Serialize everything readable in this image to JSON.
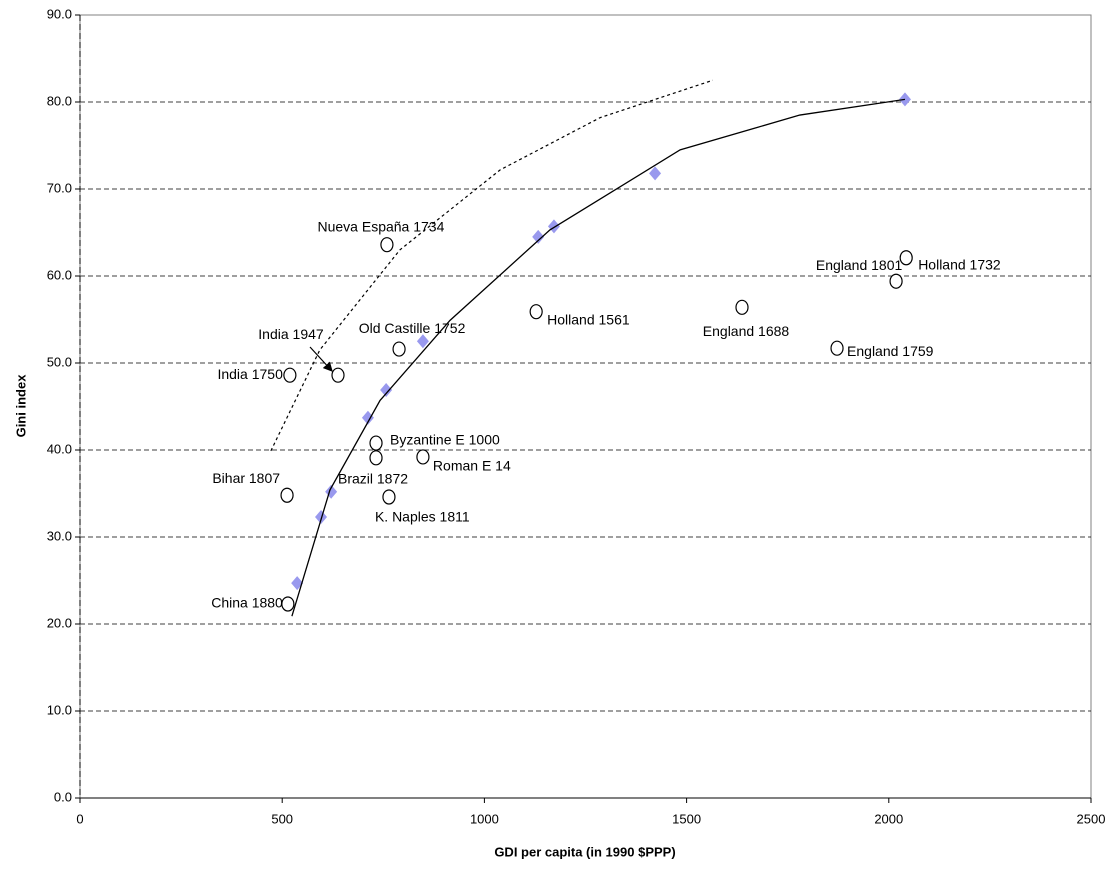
{
  "chart_data": {
    "type": "scatter",
    "x_label": "GDI per capita (in 1990 $PPP)",
    "y_label": "Gini index",
    "xlim": [
      0,
      2500
    ],
    "ylim": [
      0,
      90
    ],
    "xticks": [
      0,
      500,
      1000,
      1500,
      2000,
      2500
    ],
    "yticks": [
      {
        "value": 0,
        "label": "0.0"
      },
      {
        "value": 10,
        "label": "10.0"
      },
      {
        "value": 20,
        "label": "20.0"
      },
      {
        "value": 30,
        "label": "30.0"
      },
      {
        "value": 40,
        "label": "40.0"
      },
      {
        "value": 50,
        "label": "50.0"
      },
      {
        "value": 60,
        "label": "60.0"
      },
      {
        "value": 70,
        "label": "70.0"
      },
      {
        "value": 80,
        "label": "80.0"
      },
      {
        "value": 90,
        "label": "90.0"
      }
    ],
    "grid": true,
    "series": [
      {
        "marker": "circle",
        "color": "#000000",
        "labels": [
          "Nueva España 1734",
          "India 1750",
          "India 1947",
          "Old Castille 1752",
          "Holland 1561",
          "England 1688",
          "England 1759",
          "England 1801",
          "Holland  1732",
          "Byzantine E 1000",
          "Brazil 1872",
          "Roman E 14",
          "Bihar 1807",
          "K. Naples 1811",
          "China 1880"
        ],
        "x": [
          759,
          519,
          638,
          789,
          1128,
          1637,
          1872,
          2018,
          2043,
          732,
          732,
          848,
          512,
          764,
          514
        ],
        "y": [
          63.6,
          48.6,
          48.6,
          51.6,
          55.9,
          56.4,
          51.7,
          59.4,
          62.1,
          40.8,
          39.1,
          39.2,
          34.8,
          34.6,
          22.3
        ]
      },
      {
        "marker": "diamond",
        "color": "#9999ee",
        "x": [
          537,
          596,
          621,
          712,
          757,
          848,
          1133,
          1172,
          1422,
          2040
        ],
        "y": [
          24.7,
          32.3,
          35.2,
          43.7,
          46.9,
          52.5,
          64.5,
          65.7,
          71.8,
          80.3
        ]
      },
      {
        "line": "solid",
        "color": "#000000",
        "x": [
          524,
          618,
          742,
          915,
          1162,
          1484,
          1780,
          2040
        ],
        "y": [
          20.9,
          35.4,
          45.7,
          54.9,
          65.3,
          74.5,
          78.5,
          80.3
        ]
      },
      {
        "line": "dotted",
        "color": "#000000",
        "x": [
          472,
          593,
          791,
          1039,
          1286,
          1565
        ],
        "y": [
          39.9,
          51.5,
          63,
          72.2,
          78.2,
          82.5
        ]
      }
    ]
  }
}
